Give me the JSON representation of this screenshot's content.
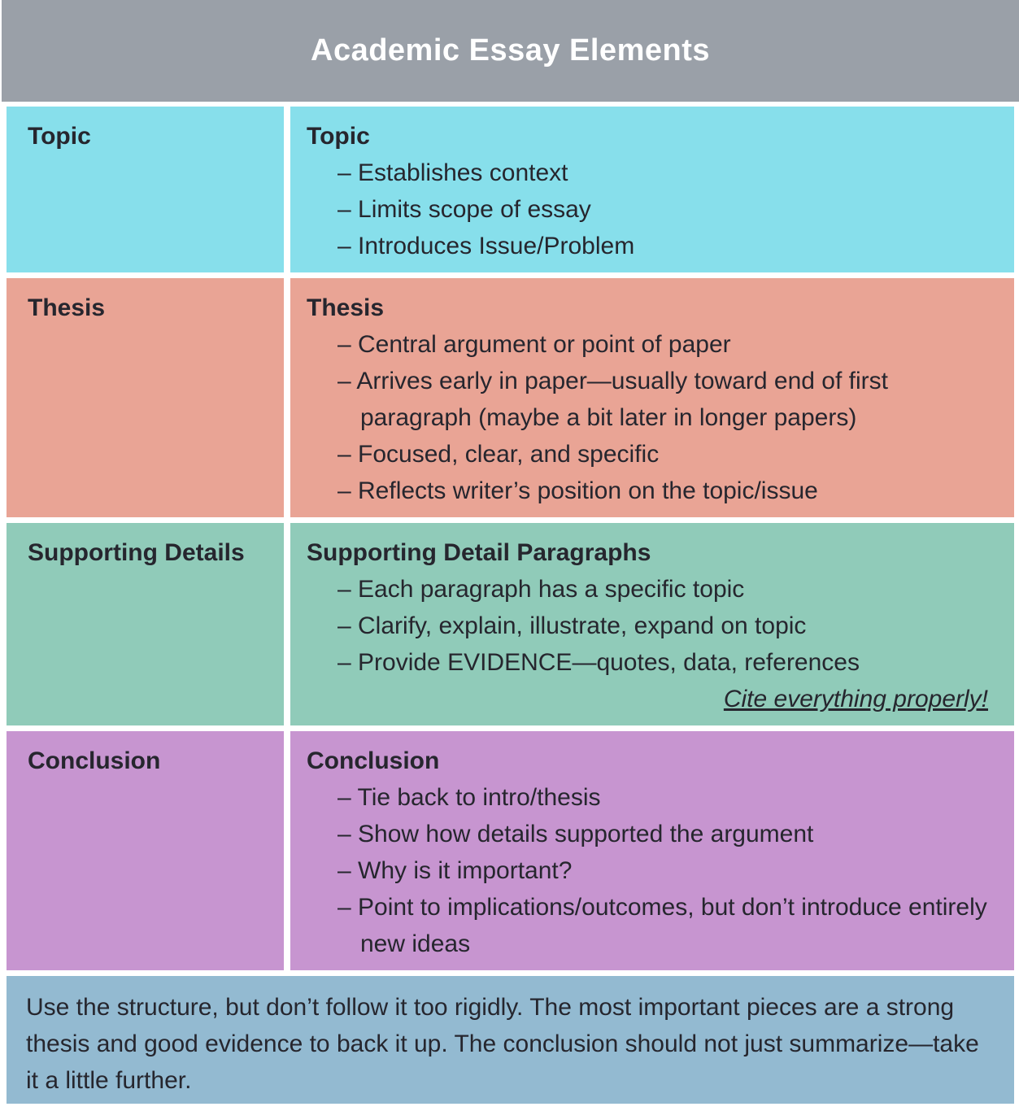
{
  "title": "Academic Essay Elements",
  "bullet_marker": "–",
  "colors": {
    "header_bg": "#9aa0a8",
    "title_text": "#ffffff",
    "body_text": "#26262e",
    "footer_bg": "#93bad1",
    "row_topic": "#87dfeb",
    "row_thesis": "#e9a495",
    "row_supporting": "#90cbb9",
    "row_conclusion": "#c795d0"
  },
  "rows": [
    {
      "label": "Topic",
      "heading": "Topic",
      "color": "#87dfeb",
      "bullets": [
        "Establishes context",
        "Limits scope of essay",
        "Introduces Issue/Problem"
      ],
      "note": ""
    },
    {
      "label": "Thesis",
      "heading": "Thesis",
      "color": "#e9a495",
      "bullets": [
        "Central argument or point of paper",
        "Arrives early in paper—usually toward end of first paragraph (maybe a bit later in longer papers)",
        "Focused, clear, and specific",
        "Reflects writer’s position on the topic/issue"
      ],
      "note": ""
    },
    {
      "label": "Supporting Details",
      "heading": "Supporting Detail Paragraphs",
      "color": "#90cbb9",
      "bullets": [
        "Each paragraph has a specific topic",
        "Clarify, explain, illustrate, expand on topic",
        "Provide EVIDENCE—quotes, data, references"
      ],
      "note": "Cite everything properly!"
    },
    {
      "label": "Conclusion",
      "heading": "Conclusion",
      "color": "#c795d0",
      "bullets": [
        "Tie back to intro/thesis",
        "Show how details supported the argument",
        "Why is it important?",
        "Point to implications/outcomes, but don’t introduce entirely new ideas"
      ],
      "note": ""
    }
  ],
  "footer": "Use the structure, but don’t follow it too rigidly. The most important pieces are a strong thesis and good evidence to back it up. The conclusion should not just summarize—take it a little further."
}
